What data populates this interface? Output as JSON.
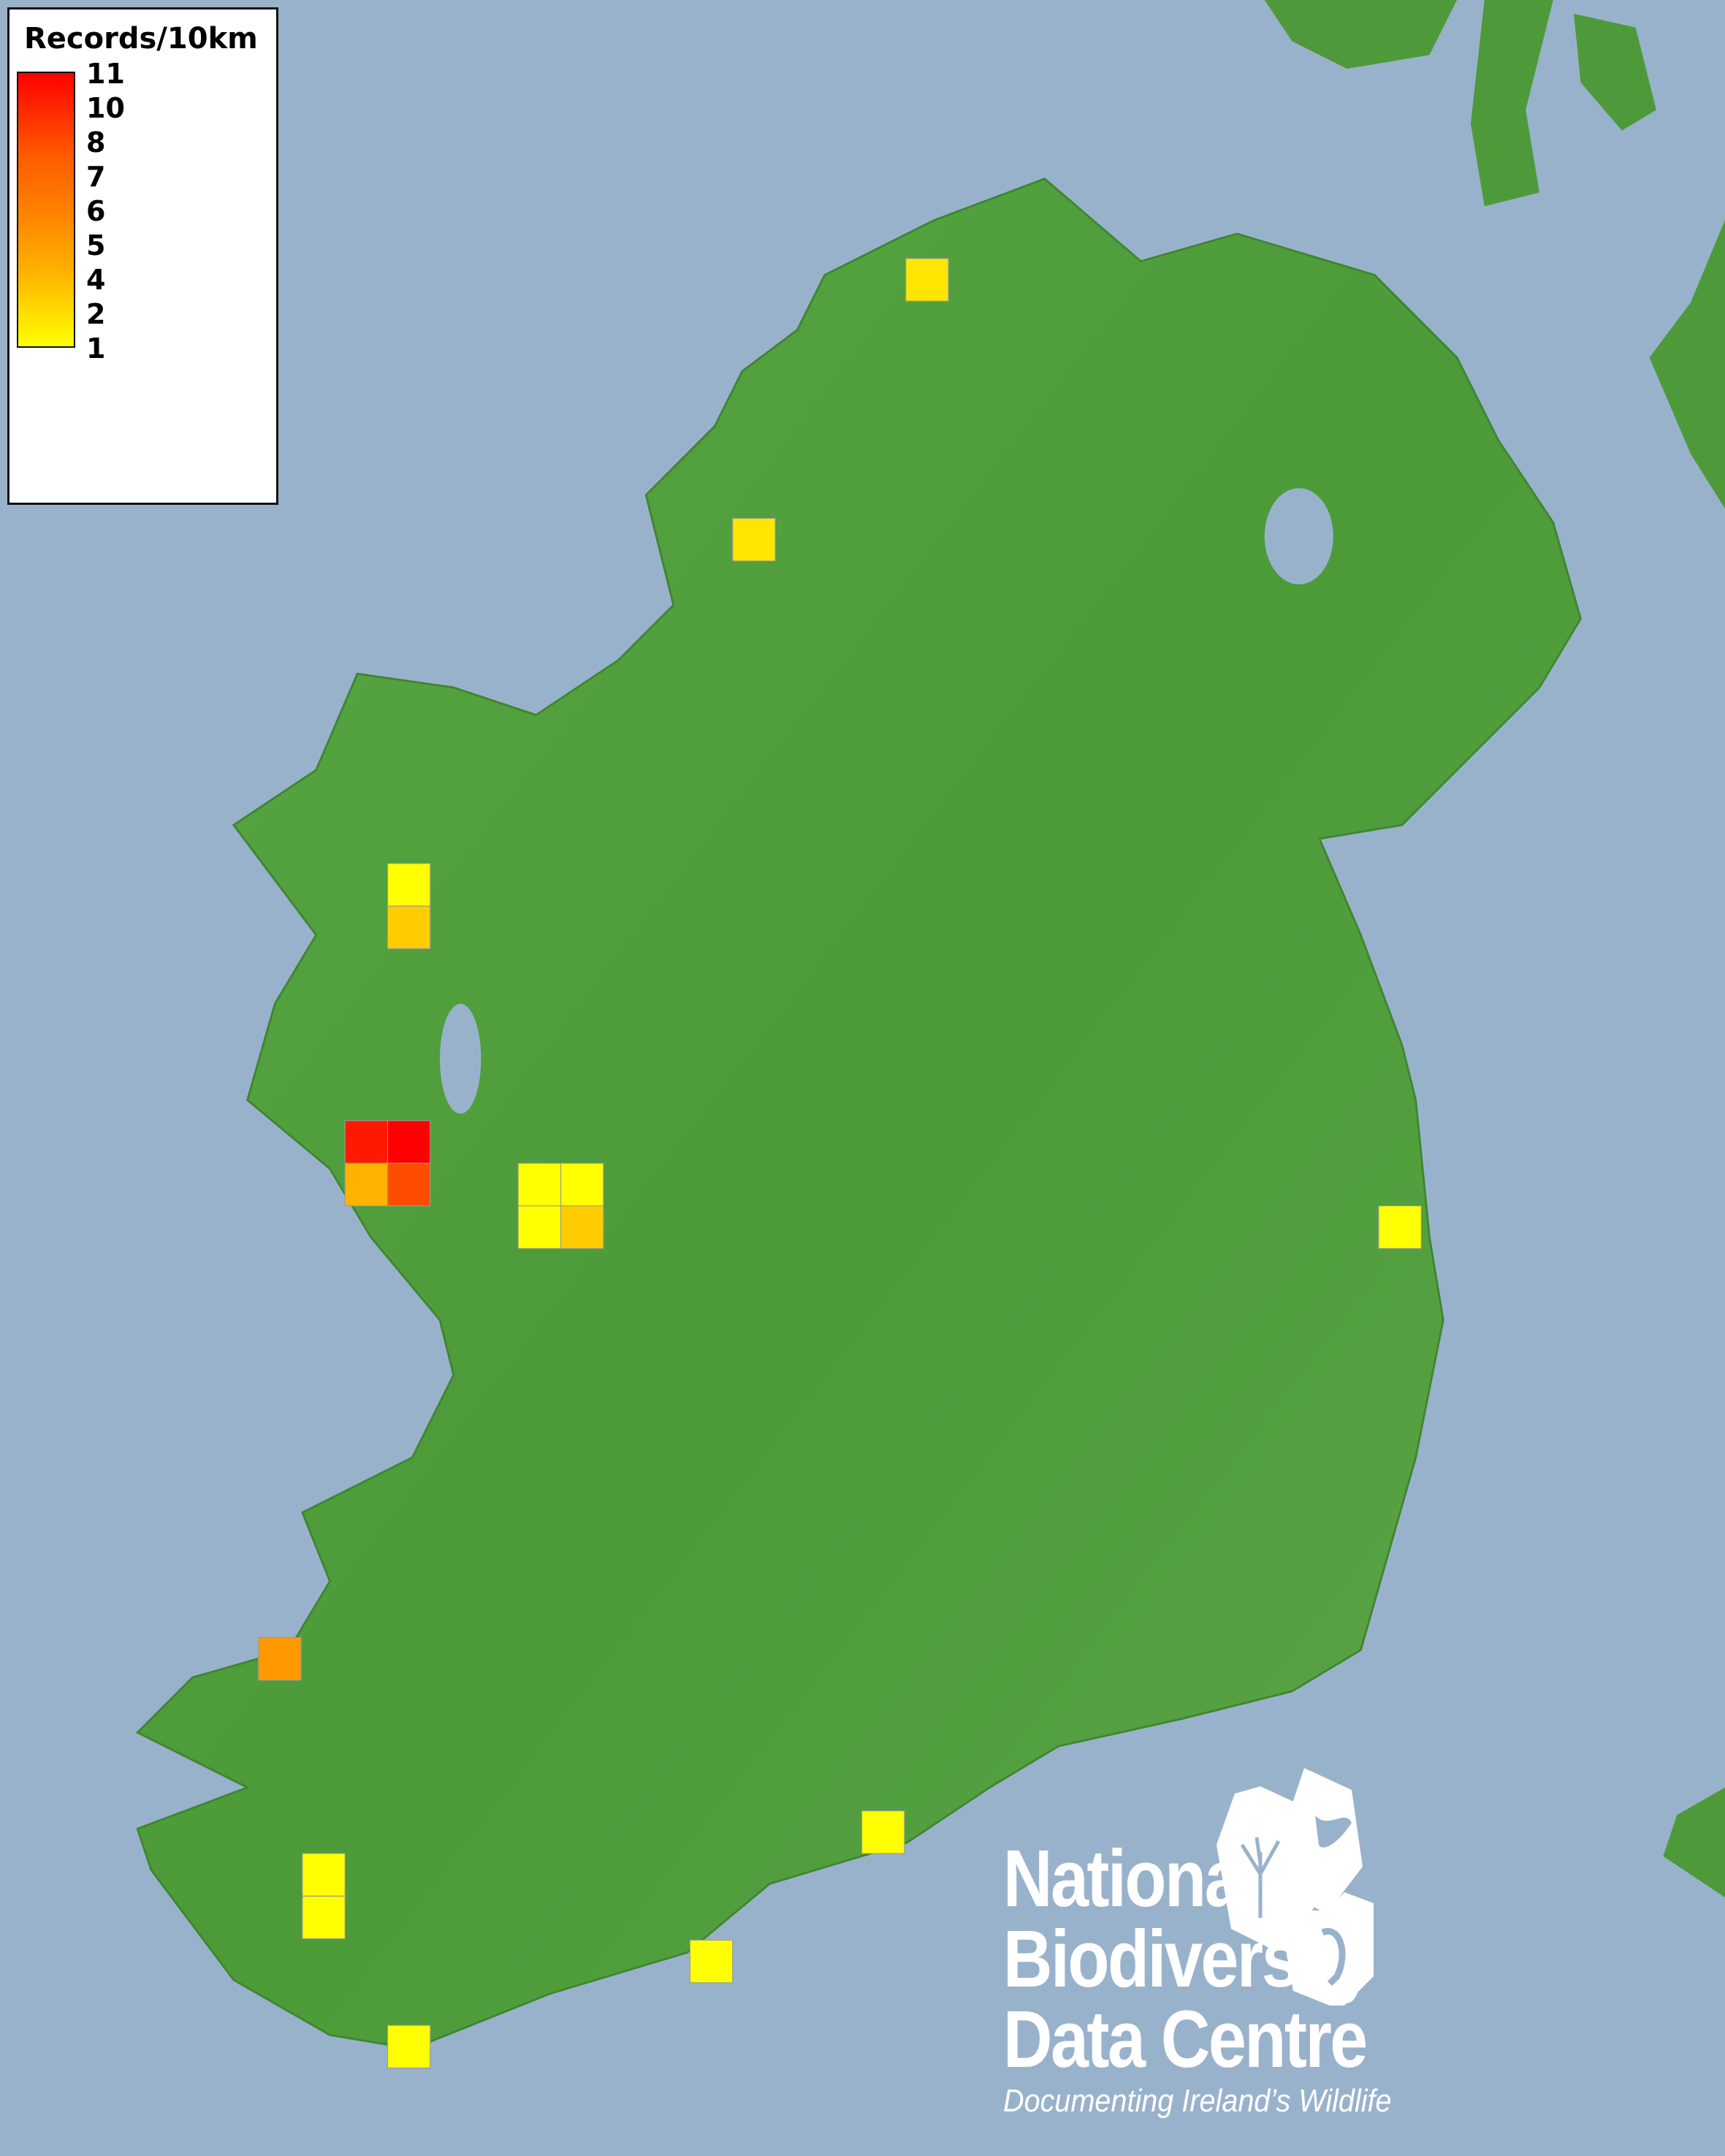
{
  "legend": {
    "title": "Records/10km",
    "labels": [
      "11",
      "10",
      "8",
      "7",
      "6",
      "5",
      "4",
      "2",
      "1"
    ],
    "color_low": "#ffff00",
    "color_high": "#ff0000"
  },
  "map": {
    "sea_color": "#99b2cc",
    "land_color": "#4e9a3a",
    "squares": [
      {
        "records": 2
      },
      {
        "records": 2
      },
      {
        "records": 1
      },
      {
        "records": 3
      },
      {
        "records": 10
      },
      {
        "records": 11
      },
      {
        "records": 4
      },
      {
        "records": 8
      },
      {
        "records": 1
      },
      {
        "records": 1
      },
      {
        "records": 1
      },
      {
        "records": 3
      },
      {
        "records": 1
      },
      {
        "records": 5
      },
      {
        "records": 1
      },
      {
        "records": 1
      },
      {
        "records": 1
      },
      {
        "records": 1
      },
      {
        "records": 1
      }
    ]
  },
  "logo": {
    "line1": "National",
    "line2": "Biodiversity",
    "line3": "Data Centre",
    "tagline": "Documenting Ireland’s Wildlife"
  }
}
